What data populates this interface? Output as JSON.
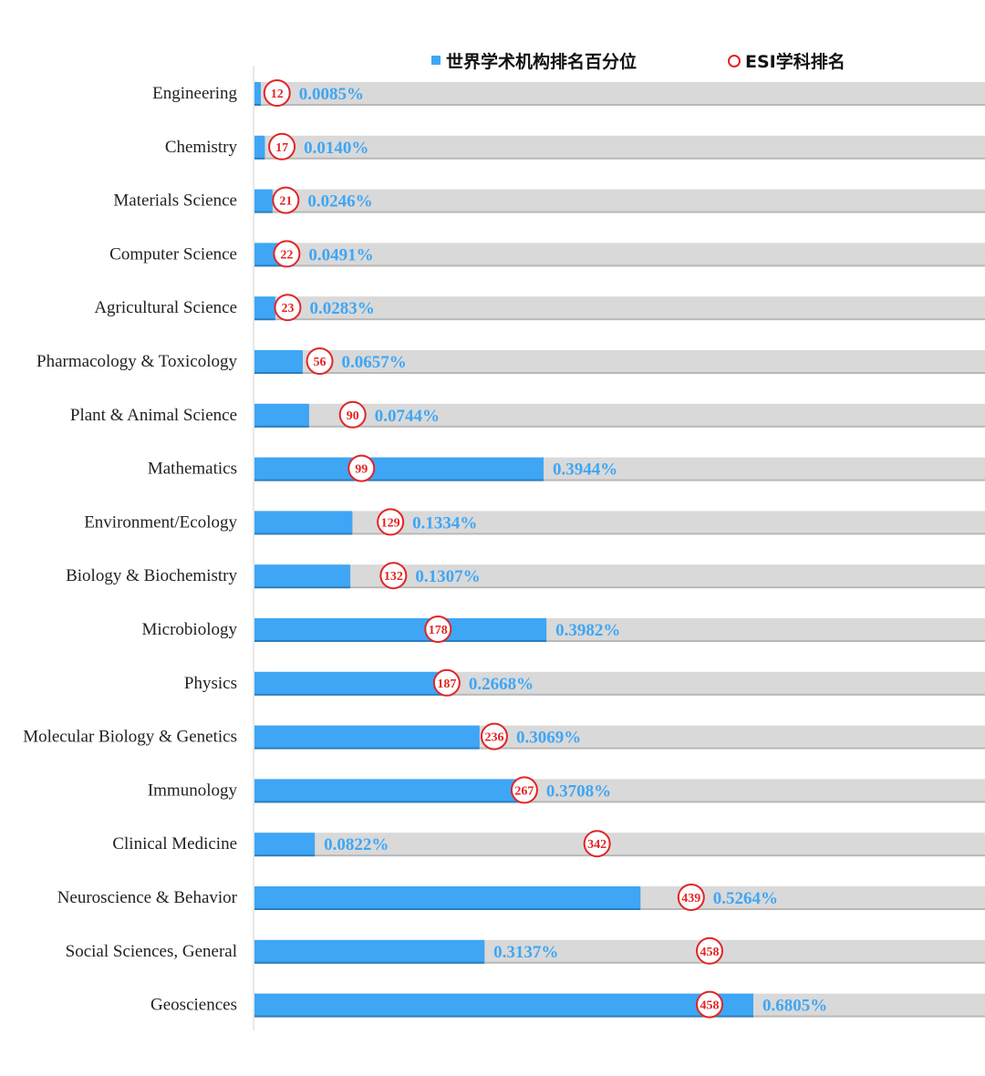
{
  "chart_data": {
    "type": "bar",
    "orientation": "horizontal",
    "legend": {
      "position": "top",
      "items": [
        {
          "label": "世界学术机构排名百分位",
          "marker": "square",
          "color": "#3ea6f5"
        },
        {
          "label": "ESI学科排名",
          "marker": "circle",
          "color": "#e32424"
        }
      ]
    },
    "categories": [
      "Engineering",
      "Chemistry",
      "Materials Science",
      "Computer Science",
      "Agricultural Science",
      "Pharmacology & Toxicology",
      "Plant & Animal Science",
      "Mathematics",
      "Environment/Ecology",
      "Biology & Biochemistry",
      "Microbiology",
      "Physics",
      "Molecular Biology & Genetics",
      "Immunology",
      "Clinical Medicine",
      "Neuroscience & Behavior",
      "Social Sciences, General",
      "Geosciences"
    ],
    "series": [
      {
        "name": "世界学术机构排名百分位",
        "values": [
          0.0085,
          0.014,
          0.0246,
          0.0491,
          0.0283,
          0.0657,
          0.0744,
          0.3944,
          0.1334,
          0.1307,
          0.3982,
          0.2668,
          0.3069,
          0.3708,
          0.0822,
          0.5264,
          0.3137,
          0.6805
        ],
        "labels": [
          "0.0085%",
          "0.0140%",
          "0.0246%",
          "0.0491%",
          "0.0283%",
          "0.0657%",
          "0.0744%",
          "0.3944%",
          "0.1334%",
          "0.1307%",
          "0.3982%",
          "0.2668%",
          "0.3069%",
          "0.3708%",
          "0.0822%",
          "0.5264%",
          "0.3137%",
          "0.6805%"
        ]
      },
      {
        "name": "ESI学科排名",
        "values": [
          12,
          17,
          21,
          22,
          23,
          56,
          90,
          99,
          129,
          132,
          178,
          187,
          236,
          267,
          342,
          439,
          458,
          458
        ]
      }
    ],
    "grid": false,
    "colors": {
      "bar": "#3ea6f5",
      "track": "#d9d9d9",
      "rank_circle": "#e32424",
      "pct_text": "#3ea6f5"
    }
  }
}
